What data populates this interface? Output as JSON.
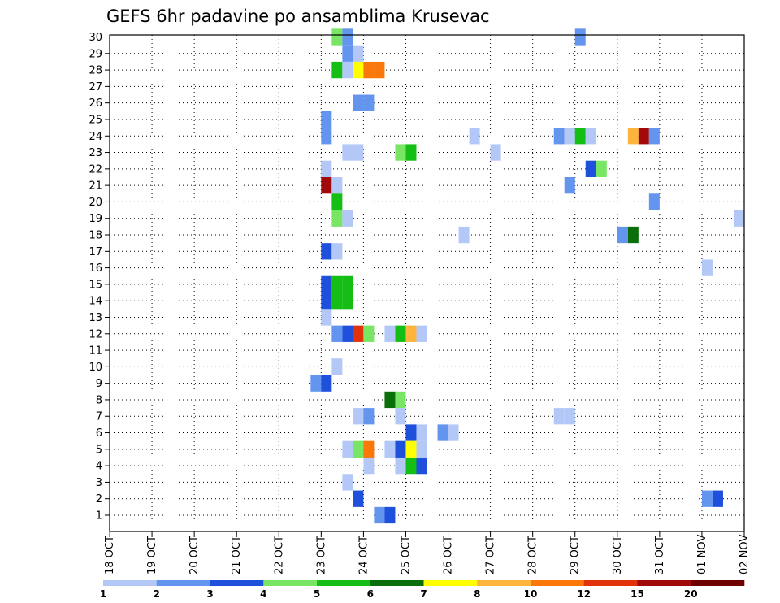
{
  "chart_data": {
    "type": "heatmap",
    "title": "GEFS 6hr padavine po ansamblima Krusevac",
    "x_ticks": [
      "18 OCT",
      "19 OCT",
      "20 OCT",
      "21 OCT",
      "22 OCT",
      "23 OCT",
      "24 OCT",
      "25 OCT",
      "26 OCT",
      "27 OCT",
      "28 OCT",
      "29 OCT",
      "30 OCT",
      "31 OCT",
      "01 NOV",
      "02 NOV"
    ],
    "x_step": "6hr",
    "y_ticks": [
      1,
      2,
      3,
      4,
      5,
      6,
      7,
      8,
      9,
      10,
      11,
      12,
      13,
      14,
      15,
      16,
      17,
      18,
      19,
      20,
      21,
      22,
      23,
      24,
      25,
      26,
      27,
      28,
      29,
      30
    ],
    "grid": true,
    "legend": {
      "position": "bottom",
      "levels": [
        "1",
        "2",
        "3",
        "4",
        "5",
        "6",
        "7",
        "8",
        "10",
        "12",
        "15",
        "20"
      ],
      "colors": [
        "#b4c8f8",
        "#6495ee",
        "#1e50dc",
        "#78e664",
        "#14be14",
        "#0a6e0a",
        "#ffff00",
        "#ffb43c",
        "#fa780a",
        "#e1320a",
        "#a00a0a",
        "#6e0000"
      ]
    },
    "cells": [
      {
        "member": 30,
        "time": "23 OCT 06Z",
        "color": "#78e664"
      },
      {
        "member": 30,
        "time": "23 OCT 12Z",
        "color": "#6495ee"
      },
      {
        "member": 30,
        "time": "29 OCT 00Z",
        "color": "#6495ee"
      },
      {
        "member": 29,
        "time": "23 OCT 12Z",
        "color": "#6495ee"
      },
      {
        "member": 29,
        "time": "23 OCT 18Z",
        "color": "#b4c8f8"
      },
      {
        "member": 28,
        "time": "23 OCT 06Z",
        "color": "#14be14"
      },
      {
        "member": 28,
        "time": "23 OCT 12Z",
        "color": "#b4c8f8"
      },
      {
        "member": 28,
        "time": "23 OCT 18Z",
        "color": "#ffff00"
      },
      {
        "member": 28,
        "time": "24 OCT 00Z",
        "color": "#fa780a"
      },
      {
        "member": 28,
        "time": "24 OCT 06Z",
        "color": "#fa780a"
      },
      {
        "member": 26,
        "time": "23 OCT 18Z",
        "color": "#6495ee"
      },
      {
        "member": 26,
        "time": "24 OCT 00Z",
        "color": "#6495ee"
      },
      {
        "member": 25,
        "time": "23 OCT 00Z",
        "color": "#6495ee"
      },
      {
        "member": 24,
        "time": "23 OCT 00Z",
        "color": "#6495ee"
      },
      {
        "member": 24,
        "time": "26 OCT 12Z",
        "color": "#b4c8f8"
      },
      {
        "member": 24,
        "time": "28 OCT 12Z",
        "color": "#6495ee"
      },
      {
        "member": 24,
        "time": "28 OCT 18Z",
        "color": "#b4c8f8"
      },
      {
        "member": 24,
        "time": "29 OCT 00Z",
        "color": "#14be14"
      },
      {
        "member": 24,
        "time": "29 OCT 06Z",
        "color": "#b4c8f8"
      },
      {
        "member": 24,
        "time": "30 OCT 06Z",
        "color": "#ffb43c"
      },
      {
        "member": 24,
        "time": "30 OCT 12Z",
        "color": "#a00a0a"
      },
      {
        "member": 24,
        "time": "30 OCT 18Z",
        "color": "#6495ee"
      },
      {
        "member": 23,
        "time": "23 OCT 12Z",
        "color": "#b4c8f8"
      },
      {
        "member": 23,
        "time": "23 OCT 18Z",
        "color": "#b4c8f8"
      },
      {
        "member": 23,
        "time": "24 OCT 18Z",
        "color": "#78e664"
      },
      {
        "member": 23,
        "time": "25 OCT 00Z",
        "color": "#14be14"
      },
      {
        "member": 23,
        "time": "27 OCT 00Z",
        "color": "#b4c8f8"
      },
      {
        "member": 22,
        "time": "23 OCT 00Z",
        "color": "#b4c8f8"
      },
      {
        "member": 22,
        "time": "29 OCT 06Z",
        "color": "#1e50dc"
      },
      {
        "member": 22,
        "time": "29 OCT 12Z",
        "color": "#78e664"
      },
      {
        "member": 21,
        "time": "23 OCT 00Z",
        "color": "#a00a0a"
      },
      {
        "member": 21,
        "time": "23 OCT 06Z",
        "color": "#b4c8f8"
      },
      {
        "member": 21,
        "time": "28 OCT 18Z",
        "color": "#6495ee"
      },
      {
        "member": 20,
        "time": "23 OCT 06Z",
        "color": "#14be14"
      },
      {
        "member": 20,
        "time": "30 OCT 18Z",
        "color": "#6495ee"
      },
      {
        "member": 19,
        "time": "23 OCT 06Z",
        "color": "#78e664"
      },
      {
        "member": 19,
        "time": "23 OCT 12Z",
        "color": "#b4c8f8"
      },
      {
        "member": 19,
        "time": "01 NOV 18Z",
        "color": "#b4c8f8"
      },
      {
        "member": 18,
        "time": "26 OCT 06Z",
        "color": "#b4c8f8"
      },
      {
        "member": 18,
        "time": "30 OCT 00Z",
        "color": "#6495ee"
      },
      {
        "member": 18,
        "time": "30 OCT 06Z",
        "color": "#0a6e0a"
      },
      {
        "member": 17,
        "time": "23 OCT 00Z",
        "color": "#1e50dc"
      },
      {
        "member": 17,
        "time": "23 OCT 06Z",
        "color": "#b4c8f8"
      },
      {
        "member": 16,
        "time": "01 NOV 00Z",
        "color": "#b4c8f8"
      },
      {
        "member": 15,
        "time": "23 OCT 00Z",
        "color": "#1e50dc"
      },
      {
        "member": 15,
        "time": "23 OCT 06Z",
        "color": "#14be14"
      },
      {
        "member": 15,
        "time": "23 OCT 12Z",
        "color": "#14be14"
      },
      {
        "member": 14,
        "time": "23 OCT 00Z",
        "color": "#1e50dc"
      },
      {
        "member": 14,
        "time": "23 OCT 06Z",
        "color": "#14be14"
      },
      {
        "member": 14,
        "time": "23 OCT 12Z",
        "color": "#14be14"
      },
      {
        "member": 13,
        "time": "23 OCT 00Z",
        "color": "#b4c8f8"
      },
      {
        "member": 12,
        "time": "23 OCT 06Z",
        "color": "#6495ee"
      },
      {
        "member": 12,
        "time": "23 OCT 12Z",
        "color": "#1e50dc"
      },
      {
        "member": 12,
        "time": "23 OCT 18Z",
        "color": "#e1320a"
      },
      {
        "member": 12,
        "time": "24 OCT 00Z",
        "color": "#78e664"
      },
      {
        "member": 12,
        "time": "24 OCT 12Z",
        "color": "#b4c8f8"
      },
      {
        "member": 12,
        "time": "24 OCT 18Z",
        "color": "#14be14"
      },
      {
        "member": 12,
        "time": "25 OCT 00Z",
        "color": "#ffb43c"
      },
      {
        "member": 12,
        "time": "25 OCT 06Z",
        "color": "#b4c8f8"
      },
      {
        "member": 10,
        "time": "23 OCT 06Z",
        "color": "#b4c8f8"
      },
      {
        "member": 9,
        "time": "22 OCT 18Z",
        "color": "#6495ee"
      },
      {
        "member": 9,
        "time": "23 OCT 00Z",
        "color": "#1e50dc"
      },
      {
        "member": 8,
        "time": "24 OCT 12Z",
        "color": "#0a6e0a"
      },
      {
        "member": 8,
        "time": "24 OCT 18Z",
        "color": "#78e664"
      },
      {
        "member": 7,
        "time": "23 OCT 18Z",
        "color": "#b4c8f8"
      },
      {
        "member": 7,
        "time": "24 OCT 00Z",
        "color": "#6495ee"
      },
      {
        "member": 7,
        "time": "24 OCT 18Z",
        "color": "#b4c8f8"
      },
      {
        "member": 7,
        "time": "28 OCT 12Z",
        "color": "#b4c8f8"
      },
      {
        "member": 7,
        "time": "28 OCT 18Z",
        "color": "#b4c8f8"
      },
      {
        "member": 6,
        "time": "25 OCT 00Z",
        "color": "#1e50dc"
      },
      {
        "member": 6,
        "time": "25 OCT 06Z",
        "color": "#b4c8f8"
      },
      {
        "member": 6,
        "time": "25 OCT 18Z",
        "color": "#6495ee"
      },
      {
        "member": 6,
        "time": "26 OCT 00Z",
        "color": "#b4c8f8"
      },
      {
        "member": 5,
        "time": "23 OCT 12Z",
        "color": "#b4c8f8"
      },
      {
        "member": 5,
        "time": "23 OCT 18Z",
        "color": "#78e664"
      },
      {
        "member": 5,
        "time": "24 OCT 00Z",
        "color": "#fa780a"
      },
      {
        "member": 5,
        "time": "24 OCT 12Z",
        "color": "#b4c8f8"
      },
      {
        "member": 5,
        "time": "24 OCT 18Z",
        "color": "#1e50dc"
      },
      {
        "member": 5,
        "time": "25 OCT 00Z",
        "color": "#ffff00"
      },
      {
        "member": 5,
        "time": "25 OCT 06Z",
        "color": "#b4c8f8"
      },
      {
        "member": 4,
        "time": "24 OCT 00Z",
        "color": "#b4c8f8"
      },
      {
        "member": 4,
        "time": "24 OCT 18Z",
        "color": "#b4c8f8"
      },
      {
        "member": 4,
        "time": "25 OCT 00Z",
        "color": "#14be14"
      },
      {
        "member": 4,
        "time": "25 OCT 06Z",
        "color": "#1e50dc"
      },
      {
        "member": 3,
        "time": "23 OCT 12Z",
        "color": "#b4c8f8"
      },
      {
        "member": 2,
        "time": "23 OCT 18Z",
        "color": "#1e50dc"
      },
      {
        "member": 2,
        "time": "01 NOV 00Z",
        "color": "#6495ee"
      },
      {
        "member": 2,
        "time": "01 NOV 06Z",
        "color": "#1e50dc"
      },
      {
        "member": 1,
        "time": "24 OCT 06Z",
        "color": "#6495ee"
      },
      {
        "member": 1,
        "time": "24 OCT 12Z",
        "color": "#1e50dc"
      }
    ]
  }
}
